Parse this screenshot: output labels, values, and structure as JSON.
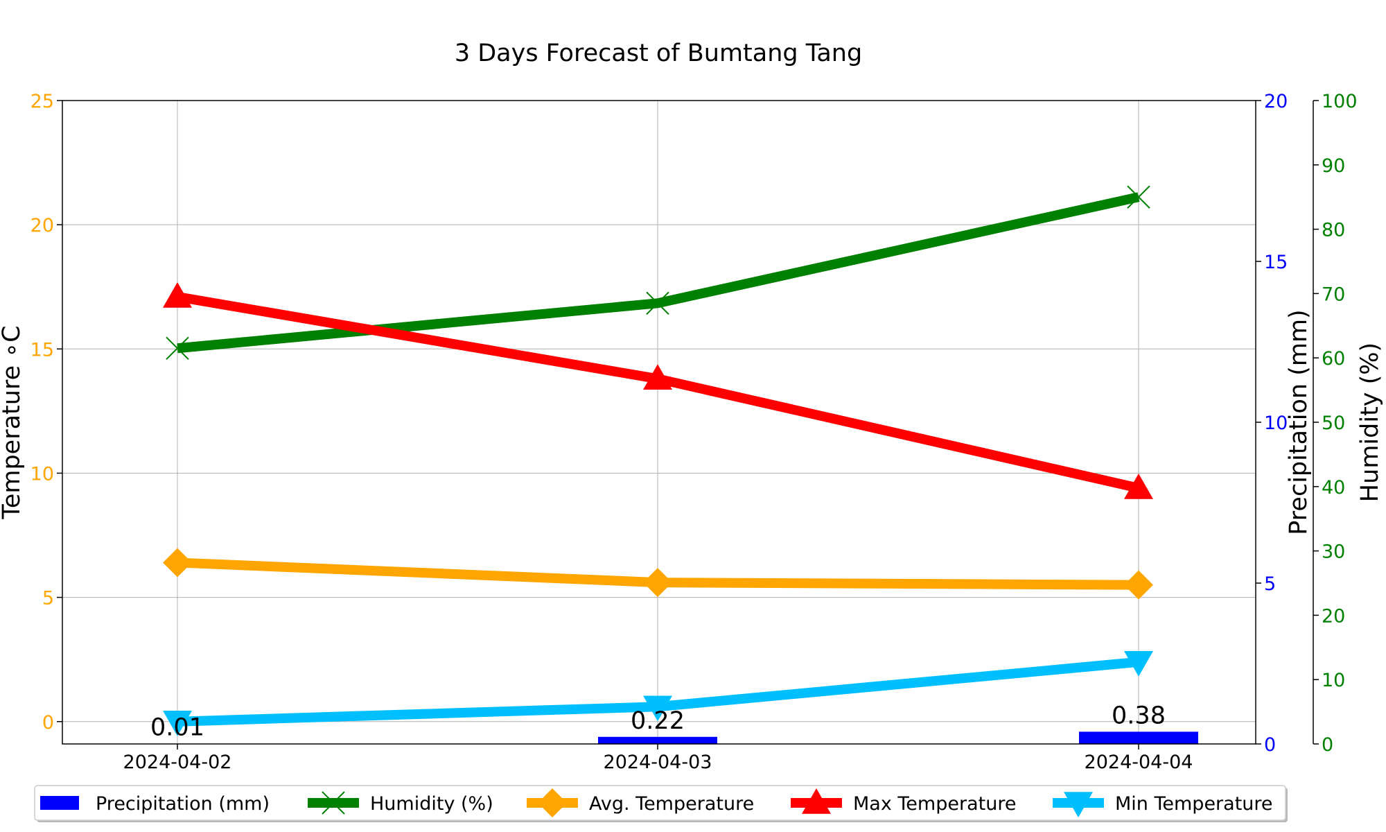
{
  "chart_data": {
    "type": "line",
    "title": "3 Days Forecast of Bumtang Tang",
    "categories": [
      "2024-04-02",
      "2024-04-03",
      "2024-04-04"
    ],
    "grid": true,
    "legend_position": "bottom",
    "axes": {
      "temperature": {
        "label": "Temperature  ∘C",
        "ylim": [
          -0.9,
          25
        ],
        "ticks": [
          0,
          5,
          10,
          15,
          20,
          25
        ],
        "color": "#ffa500",
        "side": "left"
      },
      "precipitation": {
        "label": "Precipitation (mm)",
        "ylim": [
          0,
          20
        ],
        "ticks": [
          0,
          5,
          10,
          15,
          20
        ],
        "color": "#0000ff",
        "side": "right"
      },
      "humidity": {
        "label": "Humidity (%)",
        "ylim": [
          0,
          100
        ],
        "ticks": [
          0,
          10,
          20,
          30,
          40,
          50,
          60,
          70,
          80,
          90,
          100
        ],
        "color": "#008000",
        "side": "right-outer"
      }
    },
    "series": [
      {
        "name": "Precipitation (mm)",
        "kind": "bar",
        "axis": "precipitation",
        "color": "#0000ff",
        "values": [
          0.01,
          0.22,
          0.38
        ],
        "labels": [
          "0.01",
          "0.22",
          "0.38"
        ]
      },
      {
        "name": "Humidity (%)",
        "kind": "line",
        "axis": "humidity",
        "color": "#008000",
        "marker": "x",
        "values": [
          61.5,
          68.5,
          85
        ]
      },
      {
        "name": "Avg. Temperature",
        "kind": "line",
        "axis": "temperature",
        "color": "#ffa500",
        "marker": "diamond",
        "values": [
          6.4,
          5.6,
          5.5
        ]
      },
      {
        "name": "Max Temperature",
        "kind": "line",
        "axis": "temperature",
        "color": "#ff0000",
        "marker": "triangle-up",
        "values": [
          17.1,
          13.8,
          9.4
        ]
      },
      {
        "name": "Min Temperature",
        "kind": "line",
        "axis": "temperature",
        "color": "#00bfff",
        "marker": "triangle-down",
        "values": [
          0.0,
          0.6,
          2.4
        ]
      }
    ]
  }
}
